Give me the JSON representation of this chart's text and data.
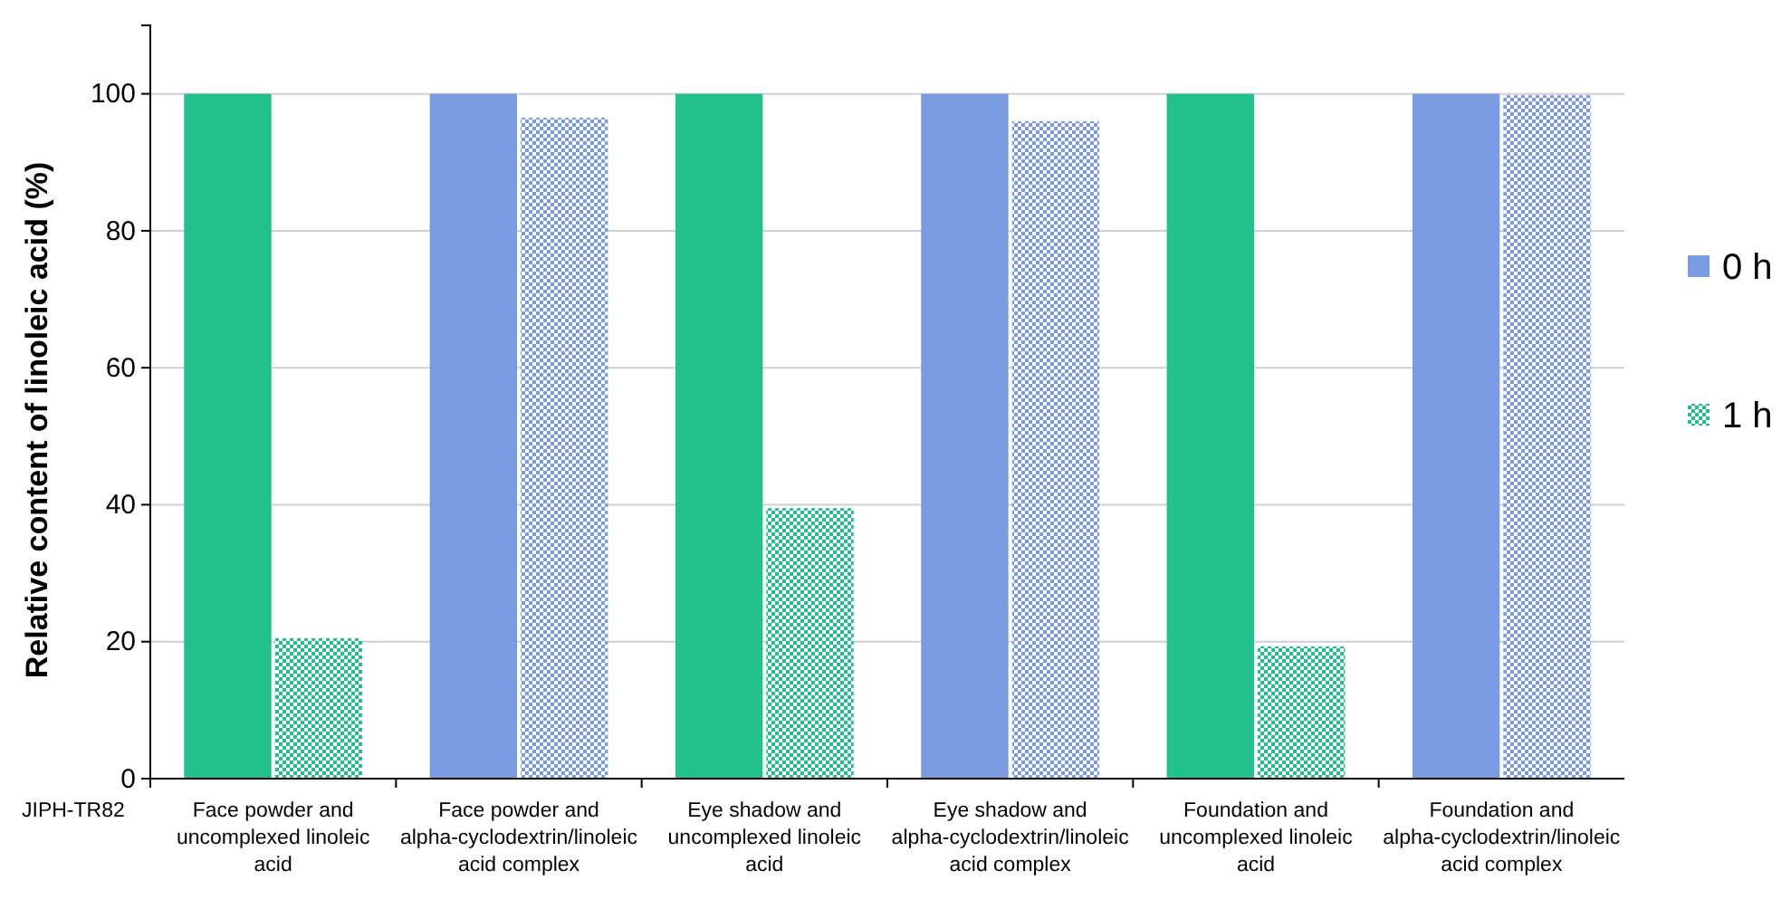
{
  "chart_data": {
    "type": "bar",
    "ylabel": "Relative content of  linoleic acid (%)",
    "categories": [
      "Face powder and uncomplexed linoleic acid",
      "Face powder and alpha-cyclodextrin/linoleic acid complex",
      "Eye shadow and uncomplexed linoleic acid",
      "Eye shadow and alpha-cyclodextrin/linoleic acid complex",
      "Foundation and uncomplexed linoleic acid",
      "Foundation and alpha-cyclodextrin/linoleic acid complex"
    ],
    "series": [
      {
        "name": "0 h",
        "color": "#7b9be0",
        "colors": [
          "#22c08a",
          "#7b9be0",
          "#22c08a",
          "#7b9be0",
          "#22c08a",
          "#7b9be0"
        ],
        "values": [
          100,
          100,
          100,
          100,
          100,
          100
        ]
      },
      {
        "name": "1 h",
        "color": "#22c08a",
        "colors": [
          "#22c08a",
          "#7b9be0",
          "#22c08a",
          "#7b9be0",
          "#22c08a",
          "#7b9be0"
        ],
        "values": [
          20.5,
          96.5,
          39.5,
          96,
          19.3,
          99.8
        ]
      }
    ],
    "ylim": [
      0,
      110
    ],
    "yticks": [
      0,
      20,
      40,
      60,
      80,
      100
    ],
    "grid": "y",
    "legend": "right",
    "annotations": [
      "JIPH-TR82"
    ]
  }
}
